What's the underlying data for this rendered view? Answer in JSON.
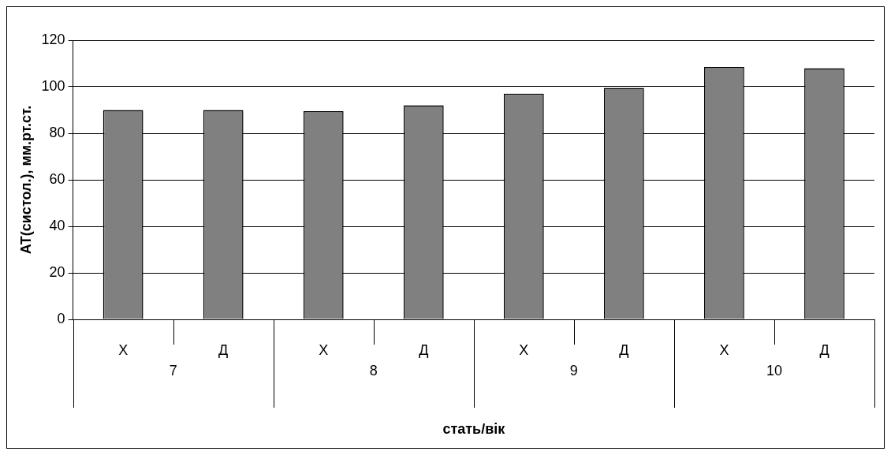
{
  "chart_data": {
    "type": "bar",
    "ylabel": "АТ(систол.), мм.рт.ст.",
    "xlabel": "стать/вік",
    "categories": [
      "Х",
      "Д",
      "Х",
      "Д",
      "Х",
      "Д",
      "Х",
      "Д"
    ],
    "annotations": [
      "7",
      "8",
      "9",
      "10"
    ],
    "values": [
      90,
      90,
      89.5,
      92,
      97,
      99.5,
      108.5,
      108
    ],
    "color": "#808080",
    "ylim": [
      0,
      120
    ],
    "yticks": [
      0,
      20,
      40,
      60,
      80,
      100,
      120
    ],
    "grid": "y"
  }
}
